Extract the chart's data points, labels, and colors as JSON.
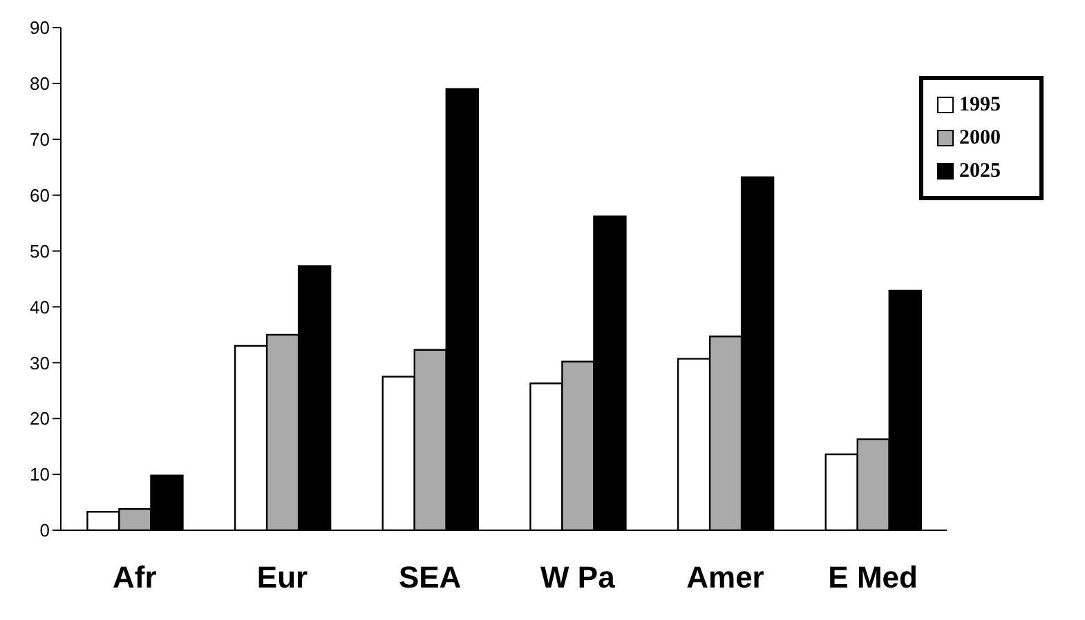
{
  "chart_data": {
    "type": "bar",
    "categories": [
      "Afr",
      "Eur",
      "SEA",
      "W Pa",
      "Amer",
      "E Med"
    ],
    "series": [
      {
        "name": "1995",
        "color": "#ffffff",
        "values": [
          3.3,
          33,
          27.5,
          26.3,
          30.7,
          13.6
        ]
      },
      {
        "name": "2000",
        "color": "#aaaaaa",
        "values": [
          3.8,
          35,
          32.3,
          30.2,
          34.7,
          16.3
        ]
      },
      {
        "name": "2025",
        "color": "#000000",
        "values": [
          9.8,
          47.3,
          79,
          56.2,
          63.2,
          42.9
        ]
      }
    ],
    "ylim": [
      0,
      90
    ],
    "yticks": [
      0,
      10,
      20,
      30,
      40,
      50,
      60,
      70,
      80,
      90
    ],
    "grid": false,
    "legend": "top right"
  }
}
